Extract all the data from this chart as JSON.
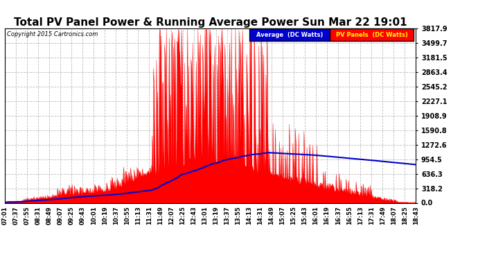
{
  "title": "Total PV Panel Power & Running Average Power Sun Mar 22 19:01",
  "copyright": "Copyright 2015 Cartronics.com",
  "ylabel_ticks": [
    0.0,
    318.2,
    636.3,
    954.5,
    1272.6,
    1590.8,
    1908.9,
    2227.1,
    2545.2,
    2863.4,
    3181.5,
    3499.7,
    3817.9
  ],
  "title_fontsize": 11,
  "background_color": "#ffffff",
  "plot_bg_color": "#ffffff",
  "grid_color": "#aaaaaa",
  "pv_color": "#ff0000",
  "avg_color": "#0000cc",
  "legend_avg_bg": "#0000cc",
  "legend_pv_bg": "#ff0000",
  "legend_avg_text": "Average  (DC Watts)",
  "legend_pv_text": "PV Panels  (DC Watts)",
  "xtick_labels": [
    "07:01",
    "07:37",
    "07:55",
    "08:31",
    "08:49",
    "09:07",
    "09:25",
    "09:43",
    "10:01",
    "10:19",
    "10:37",
    "10:55",
    "11:13",
    "11:31",
    "11:49",
    "12:07",
    "12:25",
    "12:43",
    "13:01",
    "13:19",
    "13:37",
    "13:55",
    "14:13",
    "14:31",
    "14:49",
    "15:07",
    "15:25",
    "15:43",
    "16:01",
    "16:19",
    "16:37",
    "16:55",
    "17:13",
    "17:31",
    "17:49",
    "18:07",
    "18:25",
    "18:43"
  ],
  "ymax": 3817.9,
  "ymin": 0.0
}
